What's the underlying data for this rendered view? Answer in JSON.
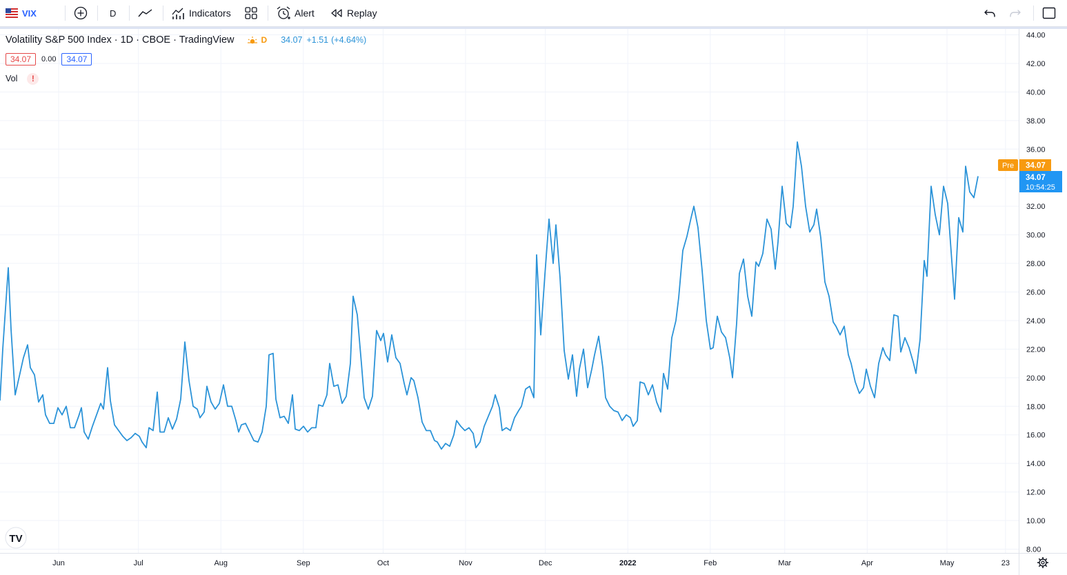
{
  "toolbar": {
    "symbol": "VIX",
    "interval": "D",
    "indicators_label": "Indicators",
    "alert_label": "Alert",
    "replay_label": "Replay"
  },
  "legend": {
    "title": "Volatility S&P 500 Index · 1D · CBOE · TradingView",
    "session_badge": "D",
    "last": "34.07",
    "change": "+1.51",
    "change_pct": "(+4.64%)",
    "bid": "34.07",
    "spread": "0.00",
    "ask": "34.07",
    "volume_label": "Vol",
    "volume_warning": "!"
  },
  "price_labels": {
    "pre_tag": "Pre",
    "pre_value": "34.07",
    "last_value": "34.07",
    "countdown": "10:54:25"
  },
  "colors": {
    "line": "#2b93d8",
    "pre": "#f79a10",
    "last": "#2196f3",
    "down_box": "#e54848",
    "up_box": "#2962ff"
  },
  "chart_data": {
    "type": "line",
    "title": "Volatility S&P 500 Index",
    "xlabel": "",
    "ylabel": "",
    "ylim": [
      8,
      44
    ],
    "y_ticks": [
      "44.00",
      "42.00",
      "40.00",
      "38.00",
      "36.00",
      "34.00",
      "32.00",
      "30.00",
      "28.00",
      "26.00",
      "24.00",
      "22.00",
      "20.00",
      "18.00",
      "16.00",
      "14.00",
      "12.00",
      "10.00",
      "8.00"
    ],
    "x_ticks": [
      "Jun",
      "Jul",
      "Aug",
      "Sep",
      "Oct",
      "Nov",
      "Dec",
      "2022",
      "Feb",
      "Mar",
      "Apr",
      "May",
      "23"
    ],
    "x_tick_dates": [
      "2021-06-01",
      "2021-07-01",
      "2021-08-01",
      "2021-09-01",
      "2021-10-01",
      "2021-11-01",
      "2021-12-01",
      "2022-01-01",
      "2022-02-01",
      "2022-03-01",
      "2022-04-01",
      "2022-05-01",
      "2022-05-23"
    ],
    "grid": true,
    "series": [
      {
        "values": [
          [
            0,
            18.4
          ],
          [
            4,
            22.0
          ],
          [
            12,
            27.7
          ],
          [
            16,
            23.4
          ],
          [
            22,
            18.8
          ],
          [
            28,
            20.1
          ],
          [
            34,
            21.4
          ],
          [
            40,
            22.3
          ],
          [
            44,
            20.7
          ],
          [
            50,
            20.2
          ],
          [
            56,
            18.3
          ],
          [
            62,
            18.8
          ],
          [
            66,
            17.4
          ],
          [
            72,
            16.8
          ],
          [
            78,
            16.8
          ],
          [
            84,
            17.9
          ],
          [
            90,
            17.4
          ],
          [
            96,
            18.0
          ],
          [
            102,
            16.5
          ],
          [
            108,
            16.5
          ],
          [
            114,
            17.3
          ],
          [
            118,
            17.9
          ],
          [
            122,
            16.2
          ],
          [
            128,
            15.7
          ],
          [
            134,
            16.6
          ],
          [
            140,
            17.4
          ],
          [
            146,
            18.2
          ],
          [
            150,
            17.8
          ],
          [
            156,
            20.7
          ],
          [
            160,
            18.4
          ],
          [
            166,
            16.7
          ],
          [
            172,
            16.3
          ],
          [
            178,
            15.9
          ],
          [
            184,
            15.6
          ],
          [
            190,
            15.8
          ],
          [
            196,
            16.1
          ],
          [
            202,
            15.9
          ],
          [
            206,
            15.5
          ],
          [
            212,
            15.1
          ],
          [
            216,
            16.5
          ],
          [
            222,
            16.3
          ],
          [
            228,
            19.0
          ],
          [
            232,
            16.2
          ],
          [
            238,
            16.2
          ],
          [
            244,
            17.2
          ],
          [
            250,
            16.4
          ],
          [
            256,
            17.1
          ],
          [
            262,
            18.5
          ],
          [
            268,
            22.5
          ],
          [
            274,
            19.8
          ],
          [
            280,
            18.0
          ],
          [
            286,
            17.8
          ],
          [
            290,
            17.2
          ],
          [
            296,
            17.6
          ],
          [
            300,
            19.4
          ],
          [
            306,
            18.3
          ],
          [
            312,
            17.8
          ],
          [
            318,
            18.2
          ],
          [
            324,
            19.5
          ],
          [
            330,
            18.0
          ],
          [
            336,
            18.0
          ],
          [
            342,
            17.0
          ],
          [
            346,
            16.2
          ],
          [
            350,
            16.7
          ],
          [
            356,
            16.8
          ],
          [
            362,
            16.2
          ],
          [
            368,
            15.6
          ],
          [
            374,
            15.5
          ],
          [
            380,
            16.2
          ],
          [
            386,
            18.0
          ],
          [
            390,
            21.6
          ],
          [
            396,
            21.7
          ],
          [
            400,
            18.5
          ],
          [
            406,
            17.2
          ],
          [
            412,
            17.3
          ],
          [
            418,
            16.8
          ],
          [
            424,
            18.8
          ],
          [
            428,
            16.4
          ],
          [
            434,
            16.3
          ],
          [
            440,
            16.6
          ],
          [
            446,
            16.2
          ],
          [
            452,
            16.5
          ],
          [
            458,
            16.5
          ],
          [
            462,
            18.1
          ],
          [
            468,
            18.0
          ],
          [
            474,
            18.8
          ],
          [
            478,
            21.0
          ],
          [
            484,
            19.4
          ],
          [
            490,
            19.5
          ],
          [
            496,
            18.2
          ],
          [
            502,
            18.7
          ],
          [
            508,
            21.0
          ],
          [
            512,
            25.7
          ],
          [
            518,
            24.4
          ],
          [
            524,
            21.0
          ],
          [
            528,
            18.6
          ],
          [
            534,
            17.8
          ],
          [
            540,
            18.7
          ],
          [
            546,
            23.3
          ],
          [
            552,
            22.6
          ],
          [
            556,
            23.1
          ],
          [
            562,
            21.1
          ],
          [
            568,
            23.0
          ],
          [
            574,
            21.4
          ],
          [
            580,
            21.0
          ],
          [
            586,
            19.6
          ],
          [
            590,
            18.8
          ],
          [
            596,
            20.0
          ],
          [
            600,
            19.8
          ],
          [
            606,
            18.6
          ],
          [
            612,
            16.9
          ],
          [
            618,
            16.3
          ],
          [
            624,
            16.3
          ],
          [
            630,
            15.6
          ],
          [
            634,
            15.5
          ],
          [
            640,
            15.0
          ],
          [
            646,
            15.4
          ],
          [
            652,
            15.2
          ],
          [
            658,
            16.0
          ],
          [
            662,
            17.0
          ],
          [
            668,
            16.6
          ],
          [
            674,
            16.3
          ],
          [
            680,
            16.5
          ],
          [
            686,
            16.1
          ],
          [
            690,
            15.1
          ],
          [
            696,
            15.5
          ],
          [
            702,
            16.6
          ],
          [
            708,
            17.3
          ],
          [
            714,
            18.0
          ],
          [
            718,
            18.8
          ],
          [
            724,
            17.9
          ],
          [
            728,
            16.3
          ],
          [
            734,
            16.5
          ],
          [
            740,
            16.3
          ],
          [
            746,
            17.2
          ],
          [
            752,
            17.7
          ],
          [
            756,
            18.0
          ],
          [
            762,
            19.2
          ],
          [
            768,
            19.4
          ],
          [
            774,
            18.6
          ],
          [
            778,
            28.6
          ],
          [
            784,
            23.0
          ],
          [
            790,
            27.2
          ],
          [
            796,
            31.1
          ],
          [
            802,
            28.0
          ],
          [
            806,
            30.7
          ],
          [
            812,
            27.0
          ],
          [
            818,
            21.9
          ],
          [
            824,
            19.9
          ],
          [
            830,
            21.6
          ],
          [
            836,
            18.7
          ],
          [
            840,
            20.6
          ],
          [
            846,
            22.0
          ],
          [
            852,
            19.3
          ],
          [
            858,
            20.6
          ],
          [
            862,
            21.6
          ],
          [
            868,
            22.9
          ],
          [
            874,
            20.7
          ],
          [
            878,
            18.6
          ],
          [
            884,
            18.0
          ],
          [
            890,
            17.7
          ],
          [
            896,
            17.6
          ],
          [
            902,
            17.0
          ],
          [
            908,
            17.4
          ],
          [
            914,
            17.2
          ],
          [
            918,
            16.6
          ],
          [
            924,
            17.0
          ],
          [
            928,
            19.7
          ],
          [
            934,
            19.6
          ],
          [
            940,
            18.8
          ],
          [
            946,
            19.5
          ],
          [
            952,
            18.3
          ],
          [
            958,
            17.6
          ],
          [
            962,
            20.3
          ],
          [
            968,
            19.2
          ],
          [
            974,
            22.8
          ],
          [
            980,
            24.0
          ],
          [
            984,
            25.6
          ],
          [
            990,
            28.9
          ],
          [
            996,
            29.9
          ],
          [
            1002,
            31.2
          ],
          [
            1006,
            32.0
          ],
          [
            1012,
            30.5
          ],
          [
            1018,
            27.5
          ],
          [
            1024,
            24.0
          ],
          [
            1030,
            22.0
          ],
          [
            1034,
            22.1
          ],
          [
            1040,
            24.3
          ],
          [
            1046,
            23.2
          ],
          [
            1052,
            22.8
          ],
          [
            1058,
            21.4
          ],
          [
            1062,
            20.0
          ],
          [
            1068,
            23.8
          ],
          [
            1072,
            27.3
          ],
          [
            1078,
            28.3
          ],
          [
            1084,
            25.7
          ],
          [
            1090,
            24.3
          ],
          [
            1096,
            28.1
          ],
          [
            1100,
            27.8
          ],
          [
            1106,
            28.7
          ],
          [
            1112,
            31.1
          ],
          [
            1118,
            30.4
          ],
          [
            1124,
            27.6
          ],
          [
            1128,
            29.5
          ],
          [
            1134,
            33.4
          ],
          [
            1140,
            30.8
          ],
          [
            1146,
            30.5
          ],
          [
            1150,
            32.0
          ],
          [
            1156,
            36.5
          ],
          [
            1162,
            34.8
          ],
          [
            1168,
            32.0
          ],
          [
            1174,
            30.2
          ],
          [
            1180,
            30.7
          ],
          [
            1184,
            31.8
          ],
          [
            1190,
            29.8
          ],
          [
            1196,
            26.7
          ],
          [
            1202,
            25.7
          ],
          [
            1208,
            23.9
          ],
          [
            1212,
            23.6
          ],
          [
            1218,
            23.0
          ],
          [
            1224,
            23.6
          ],
          [
            1230,
            21.6
          ],
          [
            1234,
            21.0
          ],
          [
            1240,
            19.7
          ],
          [
            1246,
            18.9
          ],
          [
            1252,
            19.3
          ],
          [
            1256,
            20.6
          ],
          [
            1262,
            19.4
          ],
          [
            1268,
            18.6
          ],
          [
            1274,
            21.0
          ],
          [
            1280,
            22.1
          ],
          [
            1284,
            21.6
          ],
          [
            1290,
            21.2
          ],
          [
            1296,
            24.4
          ],
          [
            1302,
            24.3
          ],
          [
            1306,
            21.8
          ],
          [
            1312,
            22.8
          ],
          [
            1318,
            22.1
          ],
          [
            1324,
            21.1
          ],
          [
            1328,
            20.3
          ],
          [
            1334,
            22.7
          ],
          [
            1340,
            28.2
          ],
          [
            1344,
            27.1
          ],
          [
            1350,
            33.4
          ],
          [
            1356,
            31.4
          ],
          [
            1362,
            30.0
          ],
          [
            1368,
            33.4
          ],
          [
            1374,
            32.2
          ],
          [
            1378,
            29.5
          ],
          [
            1384,
            25.5
          ],
          [
            1390,
            31.2
          ],
          [
            1396,
            30.2
          ],
          [
            1400,
            34.8
          ],
          [
            1406,
            33.0
          ],
          [
            1412,
            32.6
          ],
          [
            1418,
            34.1
          ]
        ]
      }
    ]
  }
}
